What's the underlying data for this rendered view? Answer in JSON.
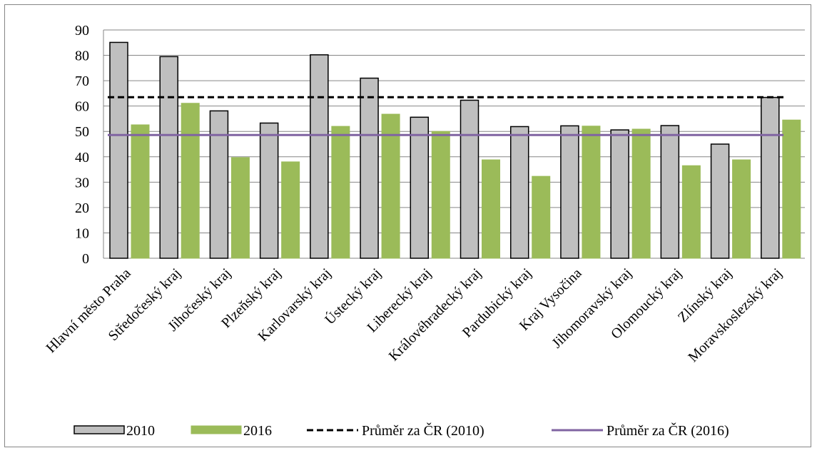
{
  "chart_data": {
    "type": "bar",
    "title": "",
    "xlabel": "",
    "ylabel": "",
    "ylim": [
      0,
      90
    ],
    "yticks": [
      0,
      10,
      20,
      30,
      40,
      50,
      60,
      70,
      80,
      90
    ],
    "grid": true,
    "legend_position": "bottom",
    "categories": [
      "Hlavní město Praha",
      "Středočeský kraj",
      "Jihočeský kraj",
      "Plzeňský kraj",
      "Karlovarský kraj",
      "Ústecký kraj",
      "Liberecký kraj",
      "Královéhradecký kraj",
      "Pardubický kraj",
      "Kraj Vysočina",
      "Jihomoravský kraj",
      "Olomoucký kraj",
      "Zlínský kraj",
      "Moravskoslezský kraj"
    ],
    "series": [
      {
        "name": "2010",
        "values": [
          85.1,
          79.5,
          58.1,
          53.3,
          80.2,
          71.0,
          55.6,
          62.3,
          51.9,
          52.2,
          50.6,
          52.3,
          45.0,
          63.4
        ],
        "color": "#bfbfbf",
        "stroke": "#000000"
      },
      {
        "name": "2016",
        "values": [
          52.6,
          61.1,
          39.7,
          38.0,
          52.0,
          56.8,
          50.0,
          38.8,
          32.3,
          52.1,
          50.9,
          36.5,
          38.8,
          54.5
        ],
        "color": "#9bbb59",
        "stroke": "#9bbb59"
      }
    ],
    "reference_lines": [
      {
        "name": "Průměr za ČR (2010)",
        "value": 63.5,
        "color": "#000000",
        "style": "dashed"
      },
      {
        "name": "Průměr za ČR (2016)",
        "value": 48.6,
        "color": "#8064a2",
        "style": "solid"
      }
    ]
  }
}
